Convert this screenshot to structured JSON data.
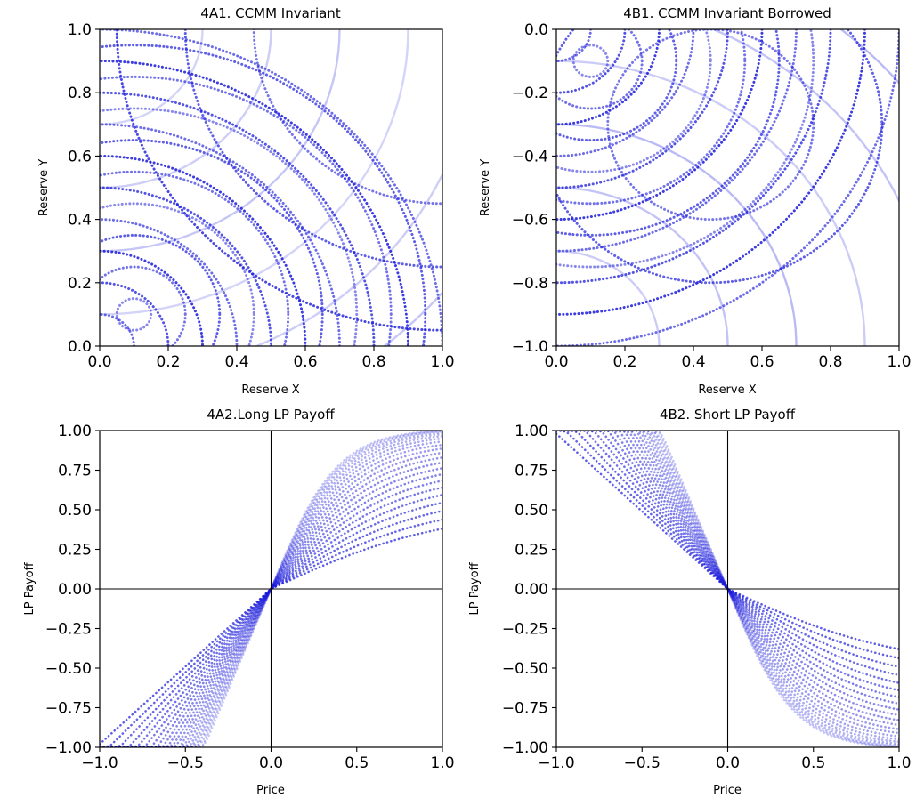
{
  "chart_data": [
    {
      "id": "p4a1",
      "type": "scatter",
      "title": "4A1. CCMM Invariant",
      "xlabel": "Reserve X",
      "ylabel": "Reserve Y",
      "xlim": [
        0,
        1
      ],
      "ylim": [
        0,
        1
      ],
      "x_ticks": [
        "0.0",
        "0.2",
        "0.4",
        "0.6",
        "0.8",
        "1.0"
      ],
      "y_ticks": [
        "0.0",
        "0.2",
        "0.4",
        "0.6",
        "0.8",
        "1.0"
      ],
      "grid": false,
      "marker_color": "#1a1adb",
      "series": [
        {
          "kind": "circle",
          "center": [
            0.0,
            0.0
          ],
          "radii": [
            0.1,
            0.2,
            0.3,
            0.4,
            0.5,
            0.6,
            0.7,
            0.8,
            0.9,
            1.0
          ],
          "opacity": 0.85,
          "dotted": true
        },
        {
          "kind": "circle",
          "center": [
            0.1,
            0.1
          ],
          "radii": [
            0.05,
            0.15,
            0.25,
            0.35,
            0.45,
            0.55,
            0.65,
            0.75,
            0.85
          ],
          "opacity": 0.7,
          "dotted": true
        },
        {
          "kind": "circle",
          "center": [
            0.0,
            1.0
          ],
          "radii": [
            0.3,
            0.5,
            0.7,
            0.9,
            1.1,
            1.3
          ],
          "opacity": 0.25,
          "dotted": false
        },
        {
          "kind": "circle",
          "center": [
            1.0,
            1.0
          ],
          "radii": [
            0.55,
            0.75,
            0.95
          ],
          "opacity": 0.8,
          "dotted": true
        }
      ]
    },
    {
      "id": "p4b1",
      "type": "scatter",
      "title": "4B1. CCMM Invariant Borrowed",
      "xlabel": "Reserve X",
      "ylabel": "Reserve Y",
      "xlim": [
        0,
        1
      ],
      "ylim": [
        -1,
        0
      ],
      "x_ticks": [
        "0.0",
        "0.2",
        "0.4",
        "0.6",
        "0.8",
        "1.0"
      ],
      "y_ticks": [
        "0.0",
        "−0.2",
        "−0.4",
        "−0.6",
        "−0.8",
        "−1.0"
      ],
      "grid": false,
      "marker_color": "#1a1adb",
      "series": [
        {
          "kind": "circle",
          "center": [
            0.0,
            0.0
          ],
          "radii": [
            0.1,
            0.2,
            0.3,
            0.4,
            0.5,
            0.6,
            0.7,
            0.8,
            0.9,
            1.0
          ],
          "opacity": 0.85,
          "dotted": true
        },
        {
          "kind": "circle",
          "center": [
            0.1,
            -0.1
          ],
          "radii": [
            0.05,
            0.15,
            0.25,
            0.35,
            0.45,
            0.55,
            0.65
          ],
          "opacity": 0.7,
          "dotted": true
        },
        {
          "kind": "circle",
          "center": [
            0.0,
            -1.0
          ],
          "radii": [
            0.3,
            0.5,
            0.7,
            0.9,
            1.1,
            1.3
          ],
          "opacity": 0.3,
          "dotted": false
        },
        {
          "kind": "circle",
          "center": [
            0.45,
            -0.3
          ],
          "radii": [
            0.3,
            0.5
          ],
          "opacity": 0.8,
          "dotted": true
        }
      ]
    },
    {
      "id": "p4a2",
      "type": "scatter",
      "title": "4A2.Long LP Payoff",
      "xlabel": "Price",
      "ylabel": "LP Payoff",
      "xlim": [
        -1,
        1
      ],
      "ylim": [
        -1,
        1
      ],
      "x_ticks": [
        "−1.0",
        "−0.5",
        "0.0",
        "0.5",
        "1.0"
      ],
      "y_ticks": [
        "1.00",
        "0.75",
        "0.50",
        "0.25",
        "0.00",
        "−0.25",
        "−0.50",
        "−0.75",
        "−1.00"
      ],
      "grid": false,
      "marker_color": "#1a1adb",
      "series": [
        {
          "kind": "payoff",
          "sign": 1,
          "slope_range": [
            1.0,
            2.6
          ],
          "saturation": 0.38,
          "count": 22
        }
      ]
    },
    {
      "id": "p4b2",
      "type": "scatter",
      "title": "4B2. Short LP Payoff",
      "xlabel": "Price",
      "ylabel": "LP Payoff",
      "xlim": [
        -1,
        1
      ],
      "ylim": [
        -1,
        1
      ],
      "x_ticks": [
        "−1.0",
        "−0.5",
        "0.0",
        "0.5",
        "1.0"
      ],
      "y_ticks": [
        "1.00",
        "0.75",
        "0.50",
        "0.25",
        "0.00",
        "−0.25",
        "−0.50",
        "−0.75",
        "−1.00"
      ],
      "grid": false,
      "marker_color": "#1a1adb",
      "series": [
        {
          "kind": "payoff",
          "sign": -1,
          "slope_range": [
            1.0,
            2.6
          ],
          "saturation": 0.38,
          "count": 22
        }
      ]
    }
  ]
}
